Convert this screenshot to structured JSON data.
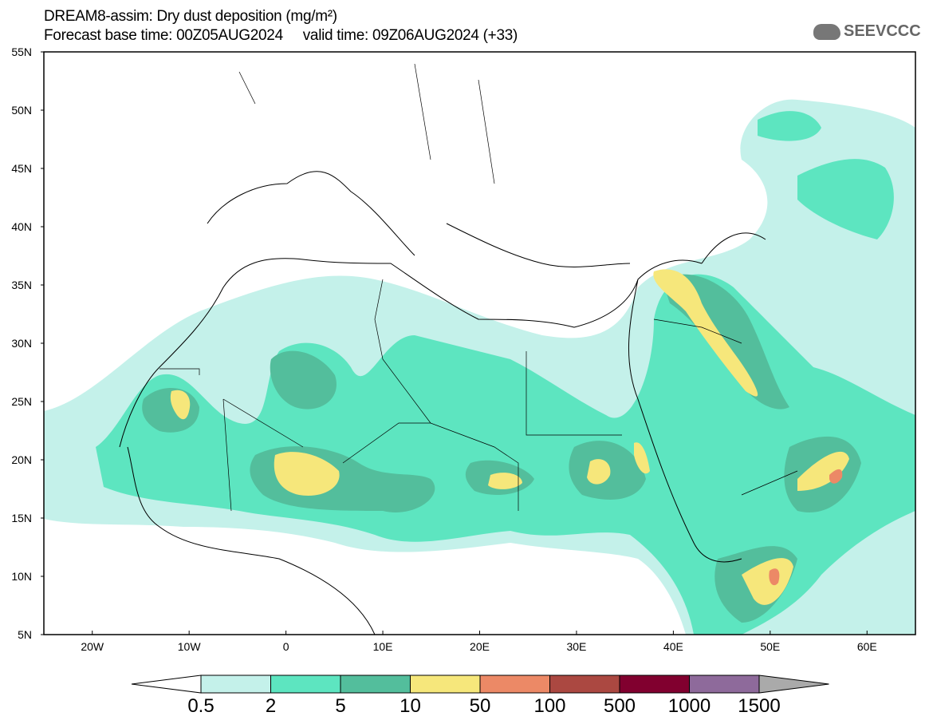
{
  "header": {
    "title": "DREAM8-assim: Dry dust deposition (mg/m²)",
    "subtitle": "Forecast base time: 00Z05AUG2024     valid time: 09Z06AUG2024 (+33)",
    "logo_text": "SEEVCCC"
  },
  "map": {
    "lat_labels": [
      "55N",
      "50N",
      "45N",
      "40N",
      "35N",
      "30N",
      "25N",
      "20N",
      "15N",
      "10N",
      "5N"
    ],
    "lon_labels": [
      "20W",
      "10W",
      "0",
      "10E",
      "20E",
      "30E",
      "40E",
      "50E",
      "60E"
    ],
    "lon_range": [
      -25,
      65
    ],
    "lat_range": [
      5,
      55
    ]
  },
  "colorbar": {
    "labels": [
      "0.5",
      "2",
      "5",
      "10",
      "50",
      "100",
      "500",
      "1000",
      "1500"
    ],
    "colors": [
      "#c4f1ea",
      "#5de5c0",
      "#53be9c",
      "#f6e77b",
      "#ec8966",
      "#ab4841",
      "#81002f",
      "#8e6a9b",
      "#aaaaaa"
    ]
  }
}
